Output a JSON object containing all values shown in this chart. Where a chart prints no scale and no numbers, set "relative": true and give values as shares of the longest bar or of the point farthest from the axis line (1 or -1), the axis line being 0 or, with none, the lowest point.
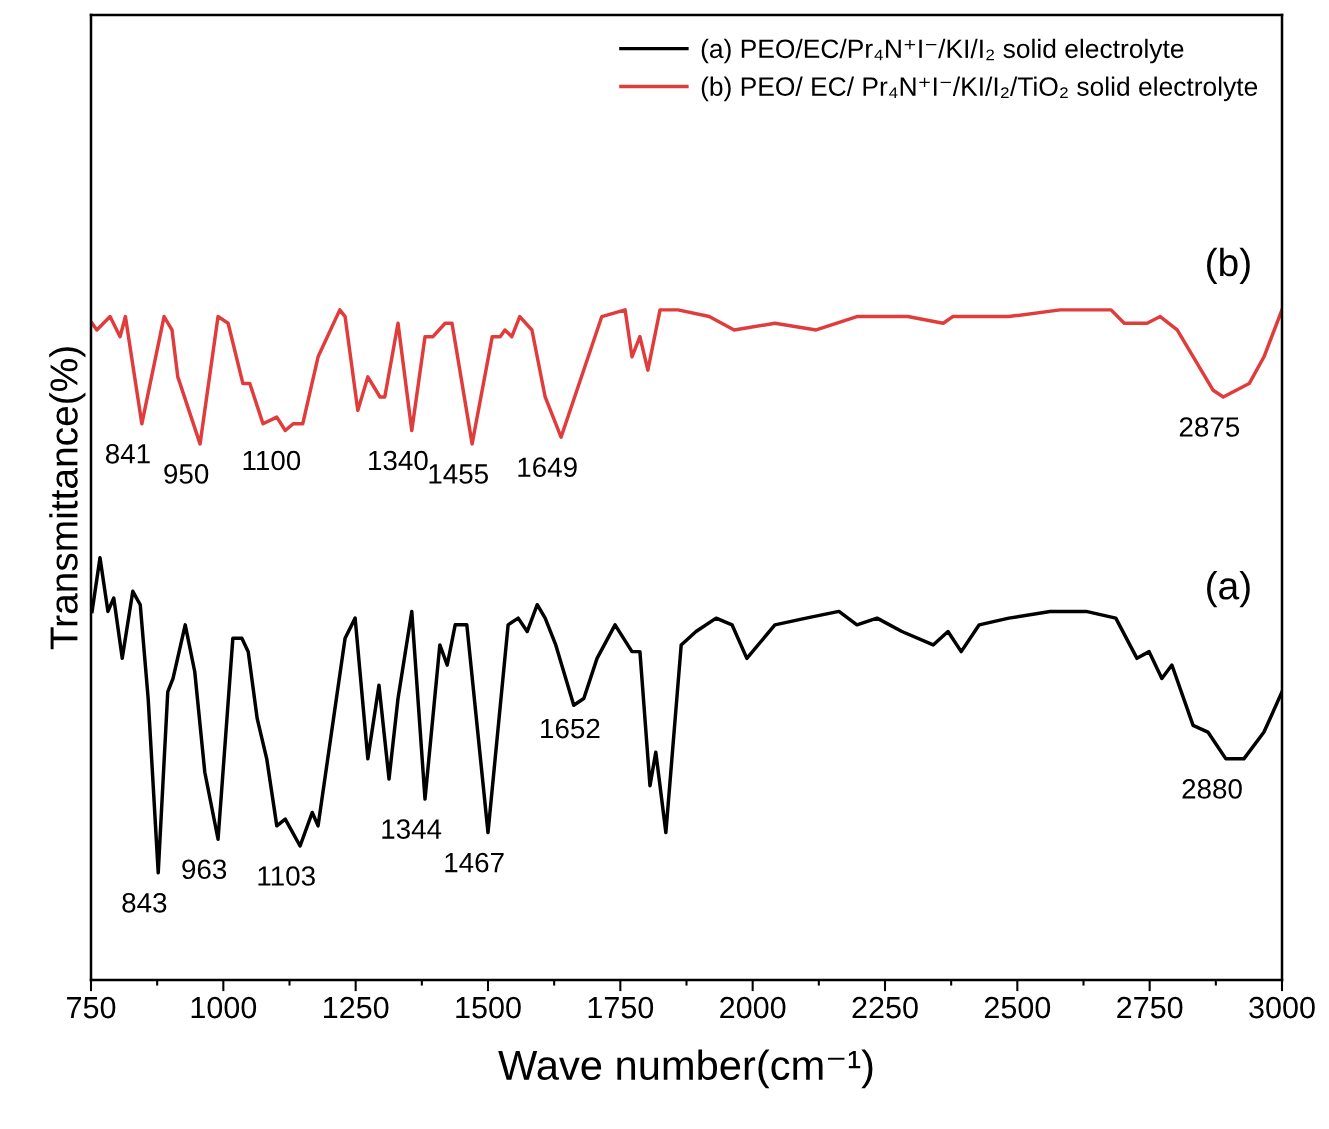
{
  "chart_data": {
    "type": "line",
    "relative": true,
    "xlabel": "Wave number(cm⁻¹)",
    "ylabel": "Transmittance(%)",
    "xlim": [
      750,
      3000
    ],
    "xticks": [
      750,
      1000,
      1250,
      1500,
      1750,
      2000,
      2250,
      2500,
      2750,
      3000
    ],
    "tick_labels": "x",
    "legend": "top right",
    "grid": false,
    "marker": "none",
    "line_style": "solid",
    "series": [
      {
        "name": "(a) PEO/EC/Pr₄N⁺I⁻/KI/I₂ solid electrolyte",
        "color": "#000000",
        "x": [
          752,
          767,
          782,
          793,
          809,
          829,
          843,
          858,
          877,
          895,
          905,
          928,
          946,
          965,
          990,
          1018,
          1035,
          1047,
          1064,
          1082,
          1101,
          1117,
          1145,
          1168,
          1179,
          1230,
          1249,
          1273,
          1294,
          1313,
          1330,
          1356,
          1381,
          1409,
          1423,
          1438,
          1460,
          1500,
          1538,
          1557,
          1574,
          1593,
          1608,
          1628,
          1662,
          1681,
          1706,
          1740,
          1772,
          1787,
          1806,
          1817,
          1836,
          1865,
          1893,
          1931,
          1961,
          1989,
          2042,
          2101,
          2163,
          2197,
          2235,
          2282,
          2341,
          2369,
          2394,
          2428,
          2484,
          2562,
          2630,
          2686,
          2726,
          2749,
          2773,
          2792,
          2832,
          2860,
          2894,
          2928,
          2966,
          3000
        ],
        "values": [
          0.55,
          0.63,
          0.55,
          0.57,
          0.48,
          0.58,
          0.56,
          0.42,
          0.16,
          0.43,
          0.45,
          0.53,
          0.46,
          0.31,
          0.21,
          0.51,
          0.51,
          0.49,
          0.39,
          0.33,
          0.23,
          0.24,
          0.2,
          0.25,
          0.23,
          0.51,
          0.54,
          0.33,
          0.44,
          0.3,
          0.42,
          0.55,
          0.27,
          0.5,
          0.47,
          0.53,
          0.53,
          0.22,
          0.53,
          0.54,
          0.52,
          0.56,
          0.54,
          0.5,
          0.41,
          0.42,
          0.48,
          0.53,
          0.49,
          0.49,
          0.29,
          0.34,
          0.22,
          0.5,
          0.52,
          0.54,
          0.53,
          0.48,
          0.53,
          0.54,
          0.55,
          0.53,
          0.54,
          0.52,
          0.5,
          0.52,
          0.49,
          0.53,
          0.54,
          0.55,
          0.55,
          0.54,
          0.48,
          0.49,
          0.45,
          0.47,
          0.38,
          0.37,
          0.33,
          0.33,
          0.37,
          0.43
        ]
      },
      {
        "name": "(b) PEO/ EC/ Pr₄N⁺I⁻/KI/I₂/TiO₂ solid electrolyte",
        "color": "#e03c3c",
        "x": [
          752,
          761,
          786,
          805,
          815,
          846,
          888,
          903,
          914,
          956,
          990,
          1009,
          1037,
          1050,
          1075,
          1101,
          1117,
          1132,
          1150,
          1179,
          1220,
          1230,
          1254,
          1273,
          1296,
          1305,
          1330,
          1356,
          1381,
          1396,
          1419,
          1432,
          1470,
          1508,
          1523,
          1532,
          1545,
          1560,
          1583,
          1608,
          1638,
          1715,
          1759,
          1772,
          1787,
          1802,
          1825,
          1859,
          1918,
          1965,
          2042,
          2120,
          2197,
          2293,
          2360,
          2378,
          2484,
          2581,
          2677,
          2702,
          2745,
          2770,
          2802,
          2870,
          2889,
          2938,
          2966,
          3000
        ],
        "values": [
          0.98,
          0.97,
          0.99,
          0.96,
          0.99,
          0.83,
          0.99,
          0.97,
          0.9,
          0.8,
          0.99,
          0.98,
          0.89,
          0.89,
          0.83,
          0.84,
          0.82,
          0.83,
          0.83,
          0.93,
          1.0,
          0.99,
          0.85,
          0.9,
          0.87,
          0.87,
          0.98,
          0.82,
          0.96,
          0.96,
          0.98,
          0.98,
          0.8,
          0.96,
          0.96,
          0.97,
          0.96,
          0.99,
          0.97,
          0.87,
          0.81,
          0.99,
          1.0,
          0.93,
          0.96,
          0.91,
          1.0,
          1.0,
          0.99,
          0.97,
          0.98,
          0.97,
          0.99,
          0.99,
          0.98,
          0.99,
          0.99,
          1.0,
          1.0,
          0.98,
          0.98,
          0.99,
          0.97,
          0.88,
          0.87,
          0.89,
          0.93,
          1.0
        ]
      }
    ],
    "annotations": [
      {
        "text": "841",
        "x": 846,
        "y": 0.83
      },
      {
        "text": "950",
        "x": 956,
        "y": 0.8
      },
      {
        "text": "1100",
        "x": 1117,
        "y": 0.82
      },
      {
        "text": "1340",
        "x": 1356,
        "y": 0.82
      },
      {
        "text": "1455",
        "x": 1470,
        "y": 0.8
      },
      {
        "text": "1649",
        "x": 1638,
        "y": 0.81
      },
      {
        "text": "2875",
        "x": 2889,
        "y": 0.87
      },
      {
        "text": "843",
        "x": 877,
        "y": 0.16
      },
      {
        "text": "963",
        "x": 990,
        "y": 0.21
      },
      {
        "text": "1103",
        "x": 1145,
        "y": 0.2
      },
      {
        "text": "1344",
        "x": 1381,
        "y": 0.27
      },
      {
        "text": "1467",
        "x": 1500,
        "y": 0.22
      },
      {
        "text": "1652",
        "x": 1681,
        "y": 0.42
      },
      {
        "text": "2880",
        "x": 2894,
        "y": 0.33
      },
      "(b)",
      "(a)"
    ]
  }
}
